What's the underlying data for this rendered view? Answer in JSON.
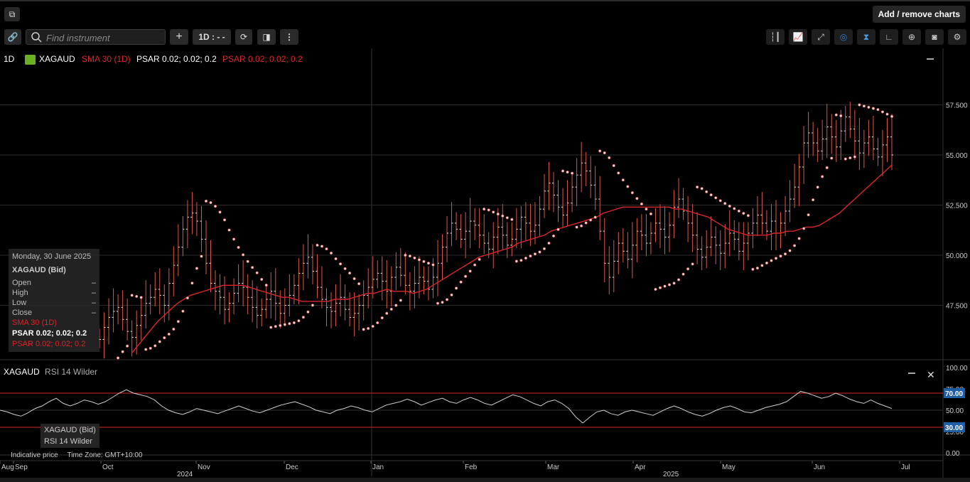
{
  "header": {
    "add_remove_label": "Add / remove charts"
  },
  "toolbar": {
    "search_placeholder": "Find instrument",
    "interval_label": "1D : - -",
    "left_icons": [
      "link-icon",
      "search-icon",
      "plus-icon",
      "interval",
      "refresh-icon",
      "bar-type-icon",
      "more-icon"
    ],
    "right_icons": [
      "bar-chart-icon",
      "line-chart-icon",
      "draw-line-icon",
      "eye-hide-icon",
      "cursor-icon",
      "curve-icon",
      "zoom-icon",
      "camera-icon",
      "gear-icon"
    ]
  },
  "legend": {
    "interval": "1D",
    "instrument": "XAGAUD",
    "sma": "SMA 30 (1D)",
    "psar1": "PSAR 0.02; 0.02; 0.2",
    "psar2": "PSAR 0.02; 0.02; 0.2"
  },
  "tooltip": {
    "date": "Monday, 30 June 2025",
    "instrument": "XAGAUD (Bid)",
    "open": "Open",
    "high": "High",
    "low": "Low",
    "close": "Close",
    "dash": "–",
    "sma": "SMA 30 (1D)",
    "psar1": "PSAR 0.02; 0.02; 0.2",
    "psar2": "PSAR 0.02; 0.02; 0.2"
  },
  "rsi": {
    "title": "XAGAUD",
    "subtitle": "RSI 14 Wilder",
    "tip_line1": "XAGAUD (Bid)",
    "tip_line2": "RSI 14 Wilder",
    "levels": {
      "upper": 70,
      "lower": 30,
      "upper_label": "70.00",
      "lower_label": "30.00"
    },
    "axis_ticks": [
      "100.00",
      "75.00",
      "50.00",
      "25.00",
      "0.00"
    ]
  },
  "footer": {
    "indicative": "Indicative price",
    "timezone": "Time Zone: GMT+10:00"
  },
  "colors": {
    "bg": "#000000",
    "grid": "#2b2b2b",
    "sma": "#d8262c",
    "candle": "#d9584f",
    "psar": "#f0d8d8",
    "rsi_line": "#cfcfcf",
    "rsi_level": "#d8262c"
  },
  "chart_data": {
    "type": "bar",
    "instrument": "XAGAUD",
    "interval": "1D",
    "y_ticks": [
      "57.500",
      "55.000",
      "52.500",
      "50.000",
      "47.500"
    ],
    "y_tick_values": [
      57.5,
      55.0,
      52.5,
      50.0,
      47.5
    ],
    "ylim": [
      45.0,
      59.0
    ],
    "x_month_labels": [
      "Aug",
      "Sep",
      "Oct",
      "Nov",
      "Dec",
      "Jan",
      "Feb",
      "Mar",
      "Apr",
      "May",
      "Jun",
      "Jul"
    ],
    "x_year_labels": [
      "2024",
      "2025"
    ],
    "closes": [
      45.8,
      46.4,
      46.9,
      47.2,
      47.4,
      46.8,
      46.2,
      45.9,
      46.5,
      47.0,
      47.6,
      47.9,
      48.3,
      48.0,
      47.5,
      48.6,
      49.5,
      50.4,
      51.3,
      51.9,
      52.1,
      51.7,
      50.8,
      49.6,
      48.6,
      48.2,
      47.9,
      47.3,
      47.6,
      48.1,
      48.6,
      48.4,
      47.9,
      47.4,
      47.0,
      47.3,
      47.8,
      48.2,
      47.6,
      47.1,
      47.5,
      48.0,
      48.5,
      49.1,
      49.6,
      49.9,
      49.2,
      48.4,
      47.8,
      47.4,
      47.2,
      47.6,
      47.9,
      47.3,
      46.9,
      47.1,
      47.5,
      48.0,
      48.4,
      48.8,
      49.1,
      48.7,
      48.2,
      48.9,
      49.4,
      49.0,
      48.5,
      48.2,
      48.6,
      48.9,
      48.7,
      48.3,
      48.9,
      49.6,
      50.4,
      51.1,
      51.6,
      51.3,
      50.8,
      51.2,
      51.7,
      51.5,
      51.0,
      50.6,
      50.3,
      50.9,
      51.4,
      51.0,
      50.5,
      50.8,
      51.3,
      51.9,
      51.6,
      51.2,
      51.5,
      52.3,
      53.2,
      53.6,
      53.0,
      52.4,
      52.0,
      52.6,
      53.4,
      54.0,
      54.6,
      54.2,
      53.5,
      52.8,
      51.2,
      49.6,
      48.9,
      49.7,
      50.6,
      50.2,
      49.8,
      50.5,
      51.2,
      51.0,
      50.6,
      51.1,
      51.6,
      51.3,
      50.9,
      51.5,
      52.4,
      52.8,
      52.2,
      51.6,
      51.0,
      50.3,
      49.9,
      50.4,
      50.9,
      50.5,
      50.1,
      50.6,
      51.1,
      50.8,
      50.2,
      50.6,
      51.1,
      51.6,
      52.0,
      51.6,
      51.2,
      51.7,
      51.1,
      51.6,
      52.2,
      52.8,
      53.4,
      54.4,
      55.6,
      56.1,
      55.6,
      55.2,
      55.8,
      56.4,
      55.9,
      55.4,
      56.2,
      56.9,
      56.3,
      55.7,
      55.1,
      55.6,
      55.9,
      55.3,
      54.9,
      55.5,
      55.9,
      55.0
    ],
    "sma_30": [
      45.1,
      45.5,
      45.9,
      46.3,
      46.7,
      47.0,
      47.3,
      47.6,
      47.8,
      48.0,
      48.1,
      48.2,
      48.3,
      48.4,
      48.5,
      48.5,
      48.5,
      48.5,
      48.4,
      48.3,
      48.2,
      48.1,
      48.0,
      47.9,
      47.9,
      47.8,
      47.7,
      47.7,
      47.7,
      47.7,
      47.7,
      47.8,
      47.8,
      47.8,
      47.9,
      48.0,
      48.1,
      48.1,
      48.2,
      48.3,
      48.2,
      48.2,
      48.2,
      48.1,
      48.2,
      48.3,
      48.5,
      48.7,
      48.9,
      49.1,
      49.3,
      49.5,
      49.7,
      49.9,
      50.0,
      50.1,
      50.2,
      50.3,
      50.4,
      50.6,
      50.7,
      50.8,
      50.9,
      51.0,
      51.2,
      51.3,
      51.4,
      51.5,
      51.6,
      51.7,
      51.8,
      51.9,
      52.1,
      52.2,
      52.3,
      52.4,
      52.4,
      52.4,
      52.4,
      52.4,
      52.4,
      52.4,
      52.4,
      52.3,
      52.3,
      52.2,
      52.1,
      52.0,
      51.9,
      51.7,
      51.5,
      51.3,
      51.2,
      51.1,
      51.0,
      51.0,
      51.0,
      51.0,
      51.1,
      51.1,
      51.2,
      51.2,
      51.3,
      51.4,
      51.4,
      51.5,
      51.7,
      51.9,
      52.1,
      52.4,
      52.7,
      53.0,
      53.3,
      53.6,
      53.9,
      54.2,
      54.5
    ]
  }
}
